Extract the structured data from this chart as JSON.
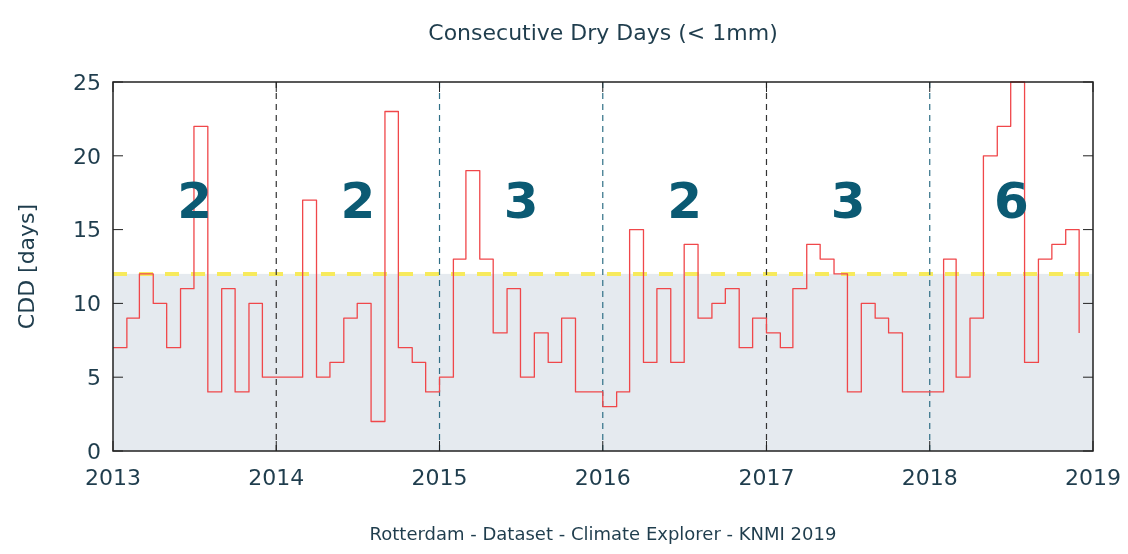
{
  "chart_data": {
    "type": "step",
    "title": "Consecutive Dry Days (< 1mm)",
    "ylabel": "CDD [days]",
    "x": [
      "2013-01",
      "2013-02",
      "2013-03",
      "2013-04",
      "2013-05",
      "2013-06",
      "2013-07",
      "2013-08",
      "2013-09",
      "2013-10",
      "2013-11",
      "2013-12",
      "2014-01",
      "2014-02",
      "2014-03",
      "2014-04",
      "2014-05",
      "2014-06",
      "2014-07",
      "2014-08",
      "2014-09",
      "2014-10",
      "2014-11",
      "2014-12",
      "2015-01",
      "2015-02",
      "2015-03",
      "2015-04",
      "2015-05",
      "2015-06",
      "2015-07",
      "2015-08",
      "2015-09",
      "2015-10",
      "2015-11",
      "2015-12",
      "2016-01",
      "2016-02",
      "2016-03",
      "2016-04",
      "2016-05",
      "2016-06",
      "2016-07",
      "2016-08",
      "2016-09",
      "2016-10",
      "2016-11",
      "2016-12",
      "2017-01",
      "2017-02",
      "2017-03",
      "2017-04",
      "2017-05",
      "2017-06",
      "2017-07",
      "2017-08",
      "2017-09",
      "2017-10",
      "2017-11",
      "2017-12",
      "2018-01",
      "2018-02",
      "2018-03",
      "2018-04",
      "2018-05",
      "2018-06",
      "2018-07",
      "2018-08",
      "2018-09",
      "2018-10",
      "2018-11",
      "2018-12"
    ],
    "series": [
      {
        "color": "#f0474a",
        "values": [
          7,
          9,
          12,
          10,
          7,
          11,
          22,
          4,
          11,
          4,
          10,
          5,
          5,
          5,
          17,
          5,
          6,
          9,
          10,
          2,
          23,
          7,
          6,
          4,
          5,
          13,
          19,
          13,
          8,
          11,
          5,
          8,
          6,
          9,
          4,
          4,
          3,
          4,
          15,
          6,
          11,
          6,
          14,
          9,
          10,
          11,
          7,
          9,
          8,
          7,
          11,
          14,
          13,
          12,
          4,
          10,
          9,
          8,
          4,
          4,
          4,
          13,
          5,
          9,
          20,
          22,
          25,
          6,
          13,
          14,
          15,
          8
        ]
      }
    ],
    "xlim": [
      "2013-01",
      "2019-01"
    ],
    "xticks": [
      {
        "value": "2013-01",
        "label": "2013"
      },
      {
        "value": "2014-01",
        "label": "2014"
      },
      {
        "value": "2015-01",
        "label": "2015"
      },
      {
        "value": "2016-01",
        "label": "2016"
      },
      {
        "value": "2017-01",
        "label": "2017"
      },
      {
        "value": "2018-01",
        "label": "2018"
      },
      {
        "value": "2019-01",
        "label": "2019"
      }
    ],
    "ylim": [
      0,
      25
    ],
    "yticks": [
      0,
      5,
      10,
      15,
      20,
      25
    ],
    "bands": [
      {
        "axis": "y",
        "from": 0,
        "to": 12,
        "color": "#e5eaef"
      }
    ],
    "ref_lines": [
      {
        "axis": "y",
        "value": 12,
        "color": "#f7ea5c",
        "line_style": "dashed"
      },
      {
        "axis": "x",
        "value": "2014-01",
        "color": "#333333",
        "line_style": "dashed"
      },
      {
        "axis": "x",
        "value": "2015-01",
        "color": "#2f6f86",
        "line_style": "dashed"
      },
      {
        "axis": "x",
        "value": "2016-01",
        "color": "#2f6f86",
        "line_style": "dashed"
      },
      {
        "axis": "x",
        "value": "2017-01",
        "color": "#333333",
        "line_style": "dashed"
      },
      {
        "axis": "x",
        "value": "2018-01",
        "color": "#2f6f86",
        "line_style": "dashed"
      }
    ],
    "annotations": [
      "2",
      "2",
      "3",
      "2",
      "3",
      "6",
      "Rotterdam - Dataset - Climate Explorer - KNMI 2019"
    ],
    "grid": false,
    "line_style": "solid",
    "marker": "none"
  }
}
